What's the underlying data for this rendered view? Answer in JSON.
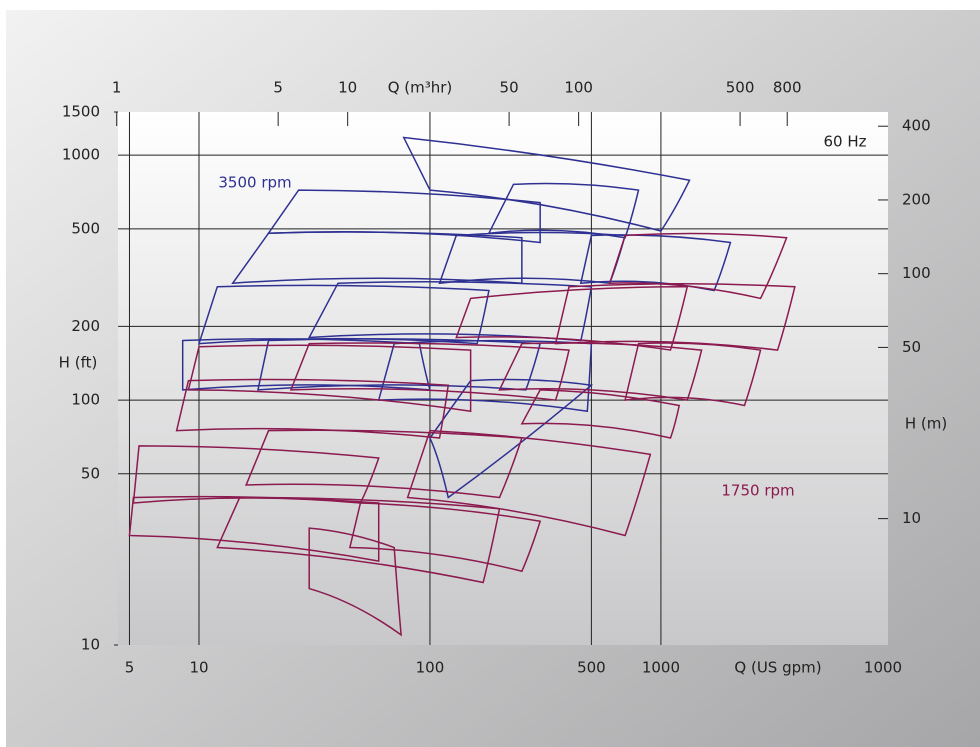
{
  "chart_data": {
    "type": "tiles",
    "x_label": "Q (US gpm)",
    "x2_label": "Q (m³hr)",
    "y_label": "H (ft)",
    "y2_label": "H (m)",
    "annotation": "60 Hz",
    "x_axis_end_label": "1000",
    "xscale": "log",
    "yscale": "log",
    "grid": true,
    "xlim": [
      4.46,
      9620
    ],
    "xticks": [
      5,
      10,
      100,
      500,
      1000
    ],
    "x2lim": [
      1.013,
      2185
    ],
    "x2ticks": [
      1,
      5,
      10,
      50,
      100,
      500,
      800
    ],
    "ylim": [
      10,
      1500
    ],
    "yticks": [
      10,
      50,
      100,
      200,
      500,
      1000,
      1500
    ],
    "y2lim": [
      3.048,
      457.2
    ],
    "y2ticks": [
      10,
      50,
      100,
      200,
      400
    ],
    "series": [
      {
        "name": "3500 rpm",
        "color": "#2e3192",
        "tiles": [
          {
            "x": [
              77,
              1330,
              1000,
              100
            ],
            "y": [
              1180,
              790,
              490,
              720
            ]
          },
          {
            "x": [
              27,
              300,
              300,
              20
            ],
            "y": [
              720,
              640,
              440,
              480
            ]
          },
          {
            "x": [
              20,
              250,
              250,
              14
            ],
            "y": [
              480,
              460,
              300,
              300
            ]
          },
          {
            "x": [
              230,
              800,
              700,
              180
            ],
            "y": [
              760,
              720,
              460,
              480
            ]
          },
          {
            "x": [
              130,
              700,
              600,
              110
            ],
            "y": [
              470,
              470,
              300,
              300
            ]
          },
          {
            "x": [
              12,
              180,
              160,
              10
            ],
            "y": [
              290,
              280,
              170,
              170
            ]
          },
          {
            "x": [
              40,
              500,
              450,
              30
            ],
            "y": [
              300,
              290,
              175,
              180
            ]
          },
          {
            "x": [
              500,
              2000,
              1700,
              450
            ],
            "y": [
              470,
              440,
              280,
              300
            ]
          },
          {
            "x": [
              8.5,
              90,
              100,
              8.5
            ],
            "y": [
              175,
              170,
              110,
              110
            ]
          },
          {
            "x": [
              20,
              300,
              260,
              18
            ],
            "y": [
              175,
              170,
              110,
              110
            ]
          },
          {
            "x": [
              70,
              500,
              480,
              60
            ],
            "y": [
              170,
              170,
              90,
              100
            ]
          },
          {
            "x": [
              150,
              500,
              120,
              100
            ],
            "y": [
              120,
              115,
              40,
              70
            ]
          }
        ]
      },
      {
        "name": "1750 rpm",
        "color": "#8b1a4f",
        "tiles": [
          {
            "x": [
              700,
              3500,
              2700,
              600
            ],
            "y": [
              470,
              460,
              260,
              300
            ]
          },
          {
            "x": [
              150,
              1300,
              1100,
              130
            ],
            "y": [
              260,
              290,
              160,
              180
            ]
          },
          {
            "x": [
              400,
              3800,
              3200,
              350
            ],
            "y": [
              290,
              290,
              160,
              170
            ]
          },
          {
            "x": [
              10,
              150,
              150,
              9
            ],
            "y": [
              165,
              160,
              90,
              110
            ]
          },
          {
            "x": [
              30,
              400,
              350,
              25
            ],
            "y": [
              170,
              160,
              100,
              110
            ]
          },
          {
            "x": [
              250,
              1500,
              1300,
              200
            ],
            "y": [
              170,
              160,
              100,
              110
            ]
          },
          {
            "x": [
              800,
              2700,
              2300,
              700
            ],
            "y": [
              170,
              160,
              95,
              100
            ]
          },
          {
            "x": [
              9,
              120,
              110,
              8
            ],
            "y": [
              120,
              115,
              70,
              75
            ]
          },
          {
            "x": [
              20,
              250,
              200,
              16
            ],
            "y": [
              75,
              70,
              40,
              45
            ]
          },
          {
            "x": [
              100,
              900,
              700,
              80
            ],
            "y": [
              75,
              60,
              28,
              40
            ]
          },
          {
            "x": [
              5.5,
              60,
              50,
              5.2
            ],
            "y": [
              65,
              58,
              38,
              38
            ]
          },
          {
            "x": [
              5.2,
              60,
              60,
              5
            ],
            "y": [
              40,
              38,
              22,
              28
            ]
          },
          {
            "x": [
              15,
              200,
              170,
              12
            ],
            "y": [
              40,
              36,
              18,
              25
            ]
          },
          {
            "x": [
              50,
              300,
              250,
              45
            ],
            "y": [
              38,
              32,
              20,
              25
            ]
          },
          {
            "x": [
              30,
              70,
              75,
              30
            ],
            "y": [
              30,
              25,
              11,
              17
            ]
          },
          {
            "x": [
              300,
              1200,
              1100,
              250
            ],
            "y": [
              110,
              95,
              70,
              80
            ]
          }
        ]
      }
    ]
  }
}
